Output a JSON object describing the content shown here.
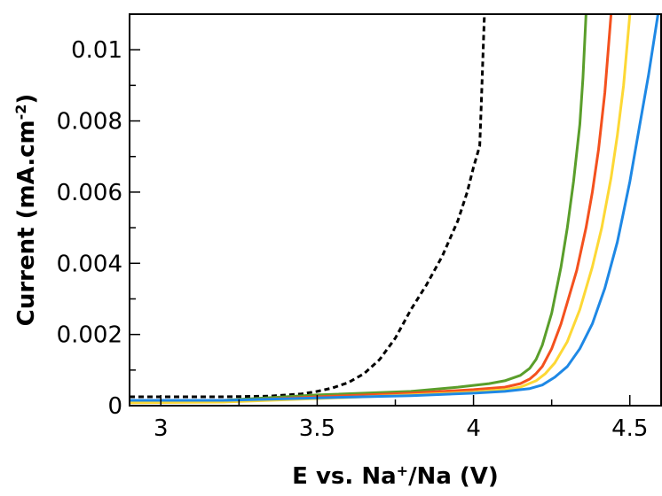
{
  "chart_data": {
    "type": "line",
    "xlabel": {
      "pre": "E vs. Na",
      "sup": "+",
      "post": "/Na (V)"
    },
    "ylabel": {
      "pre": "Current (mA.cm",
      "sup": "-2",
      "post": ")"
    },
    "xlim": [
      2.9,
      4.6
    ],
    "ylim": [
      0,
      0.011
    ],
    "x_ticks": [
      {
        "value": 3,
        "label": "3"
      },
      {
        "value": 3.5,
        "label": "3.5"
      },
      {
        "value": 4,
        "label": "4"
      },
      {
        "value": 4.5,
        "label": "4.5"
      }
    ],
    "y_ticks": [
      {
        "value": 0,
        "label": "0"
      },
      {
        "value": 0.002,
        "label": "0.002"
      },
      {
        "value": 0.004,
        "label": "0.004"
      },
      {
        "value": 0.006,
        "label": "0.006"
      },
      {
        "value": 0.008,
        "label": "0.008"
      },
      {
        "value": 0.01,
        "label": "0.01"
      }
    ],
    "grid": false,
    "legend": "none",
    "series": [
      {
        "color": "#000000",
        "dash": true,
        "x": [
          2.9,
          3.2,
          3.35,
          3.45,
          3.5,
          3.55,
          3.6,
          3.65,
          3.7,
          3.75,
          3.8,
          3.85,
          3.9,
          3.95,
          3.98,
          4.0,
          4.02,
          4.025,
          4.03,
          4.035
        ],
        "y": [
          0.00025,
          0.00025,
          0.00027,
          0.00033,
          0.0004,
          0.0005,
          0.00065,
          0.0009,
          0.0013,
          0.0019,
          0.0027,
          0.0034,
          0.0042,
          0.0052,
          0.006,
          0.0067,
          0.0073,
          0.0085,
          0.0098,
          0.011
        ]
      },
      {
        "color": "#5a9e2b",
        "dash": false,
        "x": [
          2.9,
          3.2,
          3.5,
          3.8,
          3.95,
          4.05,
          4.1,
          4.15,
          4.18,
          4.2,
          4.22,
          4.25,
          4.28,
          4.3,
          4.32,
          4.34,
          4.35,
          4.36
        ],
        "y": [
          0.00012,
          0.00015,
          0.0003,
          0.0004,
          0.00052,
          0.00062,
          0.0007,
          0.00085,
          0.00105,
          0.0013,
          0.0017,
          0.0026,
          0.0039,
          0.005,
          0.0063,
          0.0079,
          0.0092,
          0.011
        ]
      },
      {
        "color": "#f4511e",
        "dash": false,
        "x": [
          2.9,
          3.2,
          3.5,
          3.8,
          4.0,
          4.1,
          4.15,
          4.18,
          4.2,
          4.22,
          4.25,
          4.28,
          4.3,
          4.33,
          4.36,
          4.38,
          4.4,
          4.42,
          4.44
        ],
        "y": [
          0.0001,
          0.00013,
          0.00025,
          0.00035,
          0.00045,
          0.00052,
          0.00062,
          0.00075,
          0.0009,
          0.0011,
          0.0016,
          0.0023,
          0.0029,
          0.0038,
          0.005,
          0.006,
          0.0072,
          0.0088,
          0.011
        ]
      },
      {
        "color": "#fdd835",
        "dash": false,
        "x": [
          2.9,
          3.2,
          3.5,
          3.8,
          4.0,
          4.1,
          4.15,
          4.2,
          4.23,
          4.26,
          4.3,
          4.34,
          4.38,
          4.41,
          4.44,
          4.46,
          4.48,
          4.5
        ],
        "y": [
          8e-05,
          0.0001,
          0.0002,
          0.0003,
          0.00038,
          0.00045,
          0.00052,
          0.0007,
          0.0009,
          0.0012,
          0.0018,
          0.0027,
          0.0039,
          0.005,
          0.0064,
          0.0076,
          0.009,
          0.011
        ]
      },
      {
        "color": "#1e88e5",
        "dash": false,
        "x": [
          2.9,
          3.2,
          3.5,
          3.8,
          4.0,
          4.1,
          4.18,
          4.22,
          4.26,
          4.3,
          4.34,
          4.38,
          4.42,
          4.46,
          4.5,
          4.53,
          4.56,
          4.59
        ],
        "y": [
          0.00015,
          0.00015,
          0.00022,
          0.00028,
          0.00035,
          0.0004,
          0.00048,
          0.00058,
          0.0008,
          0.0011,
          0.0016,
          0.0023,
          0.0033,
          0.0046,
          0.0063,
          0.0078,
          0.0093,
          0.011
        ]
      }
    ]
  }
}
